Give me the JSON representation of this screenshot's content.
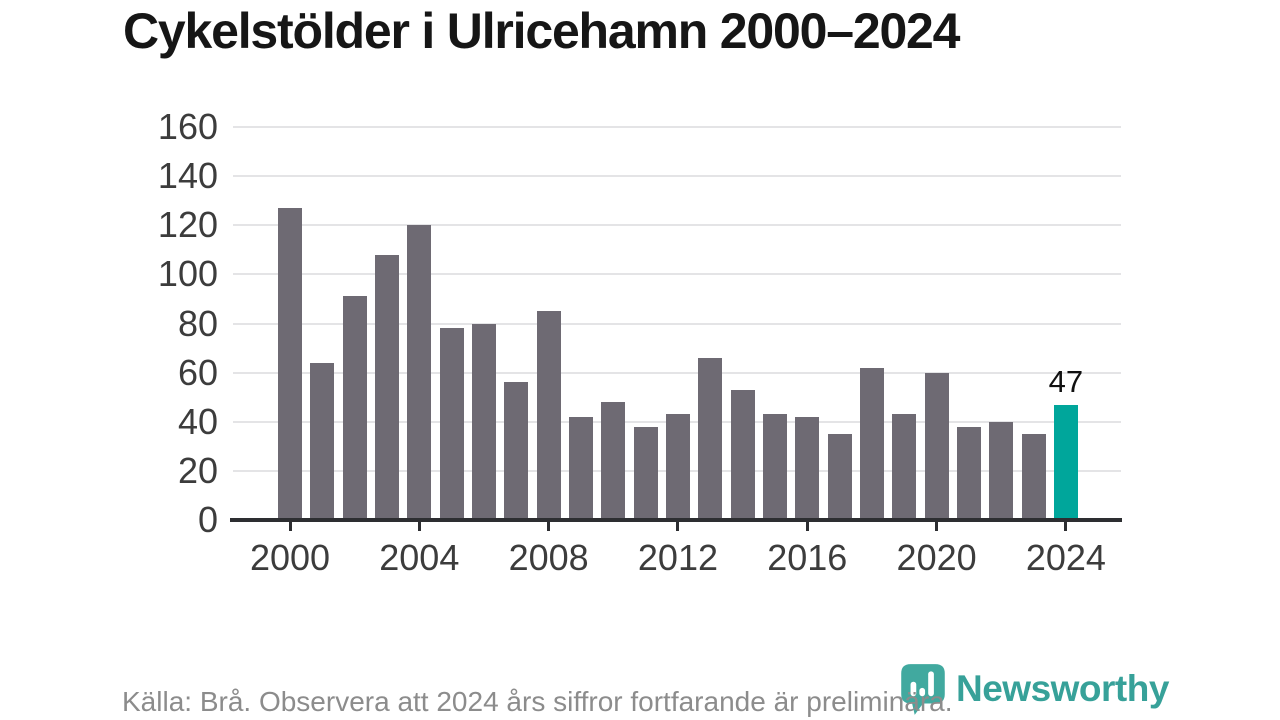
{
  "title": "Cykelstölder i Ulricehamn 2000–2024",
  "chart_data": {
    "type": "bar",
    "title": "Cykelstölder i Ulricehamn 2000–2024",
    "x": [
      2000,
      2001,
      2002,
      2003,
      2004,
      2005,
      2006,
      2007,
      2008,
      2009,
      2010,
      2011,
      2012,
      2013,
      2014,
      2015,
      2016,
      2017,
      2018,
      2019,
      2020,
      2021,
      2022,
      2023,
      2024
    ],
    "values": [
      127,
      64,
      91,
      108,
      120,
      78,
      80,
      56,
      85,
      42,
      48,
      38,
      43,
      66,
      53,
      43,
      42,
      35,
      62,
      43,
      60,
      38,
      40,
      35,
      47
    ],
    "xlabel": "",
    "ylabel": "",
    "ylim": [
      0,
      160
    ],
    "yticks": [
      0,
      20,
      40,
      60,
      80,
      100,
      120,
      140,
      160
    ],
    "xticks": [
      2000,
      2004,
      2008,
      2012,
      2016,
      2020,
      2024
    ],
    "grid": true,
    "legend": "none",
    "highlight_year": 2024,
    "highlight_value_label": "47"
  },
  "colors": {
    "bar_gray": "#6e6a73",
    "accent_teal": "#00a69b",
    "gridline": "#e4e4e6",
    "axis": "#2d2e31",
    "title_text": "#161616",
    "tick_text": "#3c3c3c",
    "footer_text": "#8c8c8c",
    "logo_teal": "#2f9e95"
  },
  "footer": {
    "source_note": "Källa: Brå. Observera att 2024 års siffror fortfarande är preliminära."
  },
  "logo": {
    "text": "Newsworthy",
    "icon": "newsworthy-bubble-barchart-icon"
  }
}
